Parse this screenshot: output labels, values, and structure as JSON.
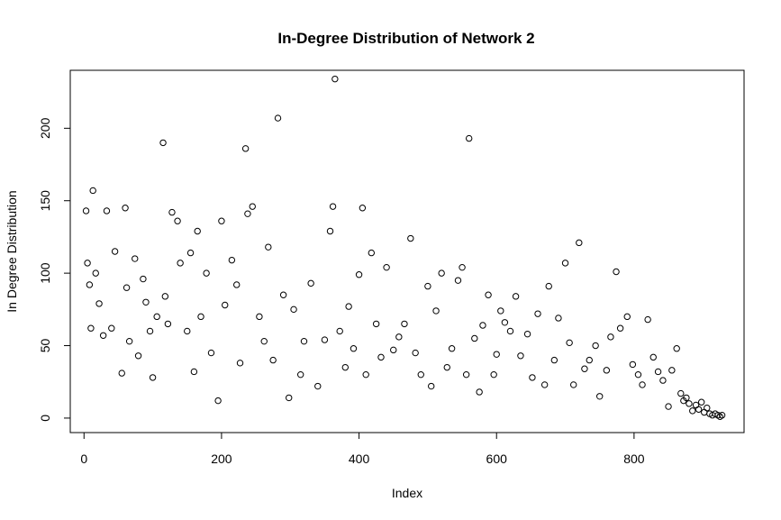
{
  "chart_data": {
    "type": "scatter",
    "title": "In-Degree Distribution of Network 2",
    "xlabel": "Index",
    "ylabel": "In Degree Distribution",
    "xlim": [
      -20,
      960
    ],
    "ylim": [
      -10,
      240
    ],
    "xticks": [
      "0",
      "200",
      "400",
      "600",
      "800"
    ],
    "yticks": [
      "0",
      "50",
      "100",
      "150",
      "200"
    ],
    "grid": false,
    "legend": "none",
    "marker": "open-circle",
    "color": "#000000",
    "series": [
      {
        "x": [
          3,
          5,
          8,
          10,
          13,
          17,
          22,
          28,
          33,
          40,
          45,
          55,
          60,
          62,
          66,
          74,
          79,
          86,
          90,
          96,
          100,
          106,
          115,
          118,
          122,
          128,
          136,
          140,
          150,
          155,
          160,
          165,
          170,
          178,
          185,
          195,
          200,
          205,
          215,
          222,
          227,
          235,
          238,
          245,
          255,
          262,
          268,
          275,
          282,
          290,
          298,
          305,
          315,
          320,
          330,
          340,
          350,
          358,
          362,
          365,
          372,
          380,
          385,
          392,
          400,
          405,
          410,
          418,
          425,
          432,
          440,
          450,
          458,
          466,
          475,
          482,
          490,
          500,
          505,
          512,
          520,
          528,
          535,
          544,
          550,
          556,
          560,
          568,
          575,
          580,
          588,
          596,
          600,
          606,
          612,
          620,
          628,
          635,
          645,
          652,
          660,
          670,
          676,
          684,
          690,
          700,
          706,
          712,
          720,
          728,
          735,
          744,
          750,
          760,
          766,
          774,
          780,
          790,
          798,
          806,
          812,
          820,
          828,
          835,
          842,
          850,
          855,
          862,
          868,
          872,
          876,
          880,
          885,
          890,
          894,
          898,
          902,
          906,
          910,
          914,
          918,
          922,
          925,
          928
        ],
        "y": [
          143,
          107,
          92,
          62,
          157,
          100,
          79,
          57,
          143,
          62,
          115,
          31,
          145,
          90,
          53,
          110,
          43,
          96,
          80,
          60,
          28,
          70,
          190,
          84,
          65,
          142,
          136,
          107,
          60,
          114,
          32,
          129,
          70,
          100,
          45,
          12,
          136,
          78,
          109,
          92,
          38,
          186,
          141,
          146,
          70,
          53,
          118,
          40,
          207,
          85,
          14,
          75,
          30,
          53,
          93,
          22,
          54,
          129,
          146,
          234,
          60,
          35,
          77,
          48,
          99,
          145,
          30,
          114,
          65,
          42,
          104,
          47,
          56,
          65,
          124,
          45,
          30,
          91,
          22,
          74,
          100,
          35,
          48,
          95,
          104,
          30,
          193,
          55,
          18,
          64,
          85,
          30,
          44,
          74,
          66,
          60,
          84,
          43,
          58,
          28,
          72,
          23,
          91,
          40,
          69,
          107,
          52,
          23,
          121,
          34,
          40,
          50,
          15,
          33,
          56,
          101,
          62,
          70,
          37,
          30,
          23,
          68,
          42,
          32,
          26,
          8,
          33,
          48,
          17,
          12,
          14,
          10,
          5,
          9,
          6,
          11,
          4,
          7,
          3,
          2,
          3,
          2,
          1,
          2
        ]
      }
    ]
  }
}
